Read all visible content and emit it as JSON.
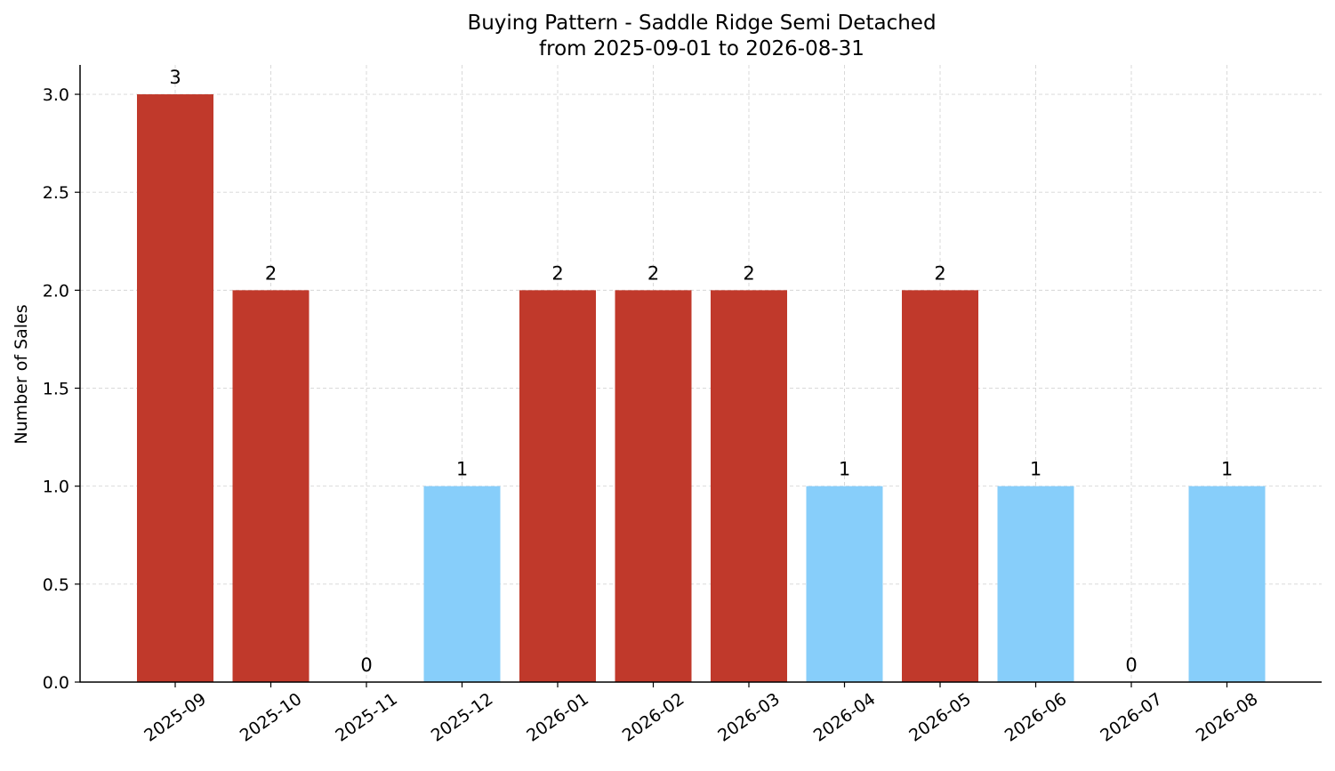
{
  "chart_data": {
    "type": "bar",
    "title": "Buying Pattern - Saddle Ridge Semi Detached",
    "subtitle": "from 2025-09-01 to 2026-08-31",
    "xlabel": "",
    "ylabel": "Number of Sales",
    "categories": [
      "2025-09",
      "2025-10",
      "2025-11",
      "2025-12",
      "2026-01",
      "2026-02",
      "2026-03",
      "2026-04",
      "2026-05",
      "2026-06",
      "2026-07",
      "2026-08"
    ],
    "values": [
      3,
      2,
      0,
      1,
      2,
      2,
      2,
      1,
      2,
      1,
      0,
      1
    ],
    "data_labels": [
      "3",
      "2",
      "0",
      "1",
      "2",
      "2",
      "2",
      "1",
      "2",
      "1",
      "0",
      "1"
    ],
    "bar_colors": [
      "#c0392b",
      "#c0392b",
      "#c0392b",
      "#87cefa",
      "#c0392b",
      "#c0392b",
      "#c0392b",
      "#87cefa",
      "#c0392b",
      "#87cefa",
      "#c0392b",
      "#87cefa"
    ],
    "ylim": [
      0,
      3.15
    ],
    "yticks": [
      0.0,
      0.5,
      1.0,
      1.5,
      2.0,
      2.5,
      3.0
    ],
    "ytick_labels": [
      "0.0",
      "0.5",
      "1.0",
      "1.5",
      "2.0",
      "2.5",
      "3.0"
    ],
    "grid": true,
    "legend": "none"
  }
}
